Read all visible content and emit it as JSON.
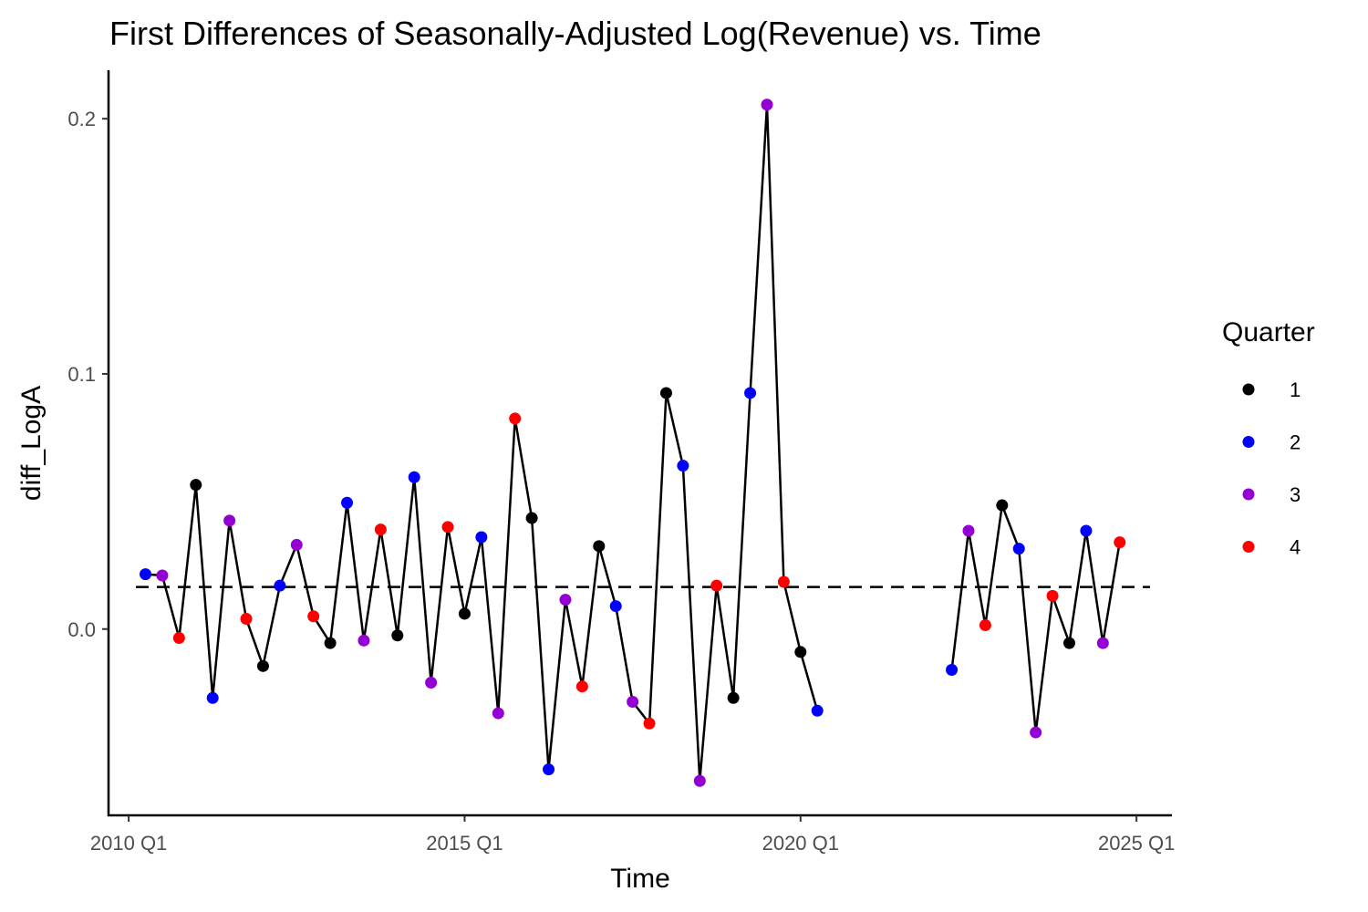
{
  "chart_data": {
    "type": "line",
    "title": "First Differences of Seasonally-Adjusted Log(Revenue) vs. Time",
    "xlabel": "Time",
    "ylabel": "diff_LogA",
    "x_ticks": [
      {
        "value": 2010.0,
        "label": "2010 Q1"
      },
      {
        "value": 2015.0,
        "label": "2015 Q1"
      },
      {
        "value": 2020.0,
        "label": "2020 Q1"
      },
      {
        "value": 2025.0,
        "label": "2025 Q1"
      }
    ],
    "y_ticks": [
      {
        "value": 0.0,
        "label": "0.0"
      },
      {
        "value": 0.1,
        "label": "0.1"
      },
      {
        "value": 0.2,
        "label": "0.2"
      }
    ],
    "xlim": [
      2009.7,
      2025.5
    ],
    "ylim": [
      -0.073,
      0.219
    ],
    "reference_line": {
      "y": 0.0165,
      "style": "dashed"
    },
    "legend": {
      "title": "Quarter",
      "position": "right",
      "entries": [
        {
          "label": "1",
          "color": "#000000"
        },
        {
          "label": "2",
          "color": "#0000ff"
        },
        {
          "label": "3",
          "color": "#9400d3"
        },
        {
          "label": "4",
          "color": "#ff0000"
        }
      ]
    },
    "grid": false,
    "series": [
      {
        "points": [
          {
            "x": 2010.25,
            "y": 0.0215,
            "q": 2
          },
          {
            "x": 2010.5,
            "y": 0.021,
            "q": 3
          },
          {
            "x": 2010.75,
            "y": -0.0035,
            "q": 4
          },
          {
            "x": 2011.0,
            "y": 0.0565,
            "q": 1
          },
          {
            "x": 2011.25,
            "y": -0.027,
            "q": 2
          },
          {
            "x": 2011.5,
            "y": 0.0425,
            "q": 3
          },
          {
            "x": 2011.75,
            "y": 0.004,
            "q": 4
          },
          {
            "x": 2012.0,
            "y": -0.0145,
            "q": 1
          },
          {
            "x": 2012.25,
            "y": 0.017,
            "q": 2
          },
          {
            "x": 2012.5,
            "y": 0.033,
            "q": 3
          },
          {
            "x": 2012.75,
            "y": 0.005,
            "q": 4
          },
          {
            "x": 2013.0,
            "y": -0.0055,
            "q": 1
          },
          {
            "x": 2013.25,
            "y": 0.0495,
            "q": 2
          },
          {
            "x": 2013.5,
            "y": -0.0045,
            "q": 3
          },
          {
            "x": 2013.75,
            "y": 0.039,
            "q": 4
          },
          {
            "x": 2014.0,
            "y": -0.0025,
            "q": 1
          },
          {
            "x": 2014.25,
            "y": 0.0595,
            "q": 2
          },
          {
            "x": 2014.5,
            "y": -0.021,
            "q": 3
          },
          {
            "x": 2014.75,
            "y": 0.04,
            "q": 4
          },
          {
            "x": 2015.0,
            "y": 0.006,
            "q": 1
          },
          {
            "x": 2015.25,
            "y": 0.036,
            "q": 2
          },
          {
            "x": 2015.5,
            "y": -0.033,
            "q": 3
          },
          {
            "x": 2015.75,
            "y": 0.0825,
            "q": 4
          },
          {
            "x": 2016.0,
            "y": 0.0435,
            "q": 1
          },
          {
            "x": 2016.25,
            "y": -0.055,
            "q": 2
          },
          {
            "x": 2016.5,
            "y": 0.0115,
            "q": 3
          },
          {
            "x": 2016.75,
            "y": -0.0225,
            "q": 4
          },
          {
            "x": 2017.0,
            "y": 0.0325,
            "q": 1
          },
          {
            "x": 2017.25,
            "y": 0.009,
            "q": 2
          },
          {
            "x": 2017.5,
            "y": -0.0285,
            "q": 3
          },
          {
            "x": 2017.75,
            "y": -0.037,
            "q": 4
          },
          {
            "x": 2018.0,
            "y": 0.0925,
            "q": 1
          },
          {
            "x": 2018.25,
            "y": 0.064,
            "q": 2
          },
          {
            "x": 2018.5,
            "y": -0.0595,
            "q": 3
          },
          {
            "x": 2018.75,
            "y": 0.017,
            "q": 4
          },
          {
            "x": 2019.0,
            "y": -0.027,
            "q": 1
          },
          {
            "x": 2019.25,
            "y": 0.0925,
            "q": 2
          },
          {
            "x": 2019.5,
            "y": 0.2055,
            "q": 3
          },
          {
            "x": 2019.75,
            "y": 0.0185,
            "q": 4
          },
          {
            "x": 2020.0,
            "y": -0.009,
            "q": 1
          },
          {
            "x": 2020.25,
            "y": -0.032,
            "q": 2
          }
        ]
      },
      {
        "points": [
          {
            "x": 2022.25,
            "y": -0.016,
            "q": 2
          },
          {
            "x": 2022.5,
            "y": 0.0385,
            "q": 3
          },
          {
            "x": 2022.75,
            "y": 0.0015,
            "q": 4
          },
          {
            "x": 2023.0,
            "y": 0.0485,
            "q": 1
          },
          {
            "x": 2023.25,
            "y": 0.0315,
            "q": 2
          },
          {
            "x": 2023.5,
            "y": -0.0405,
            "q": 3
          },
          {
            "x": 2023.75,
            "y": 0.013,
            "q": 4
          },
          {
            "x": 2024.0,
            "y": -0.0055,
            "q": 1
          },
          {
            "x": 2024.25,
            "y": 0.0385,
            "q": 2
          },
          {
            "x": 2024.5,
            "y": -0.0055,
            "q": 3
          },
          {
            "x": 2024.75,
            "y": 0.034,
            "q": 4
          }
        ]
      }
    ]
  }
}
